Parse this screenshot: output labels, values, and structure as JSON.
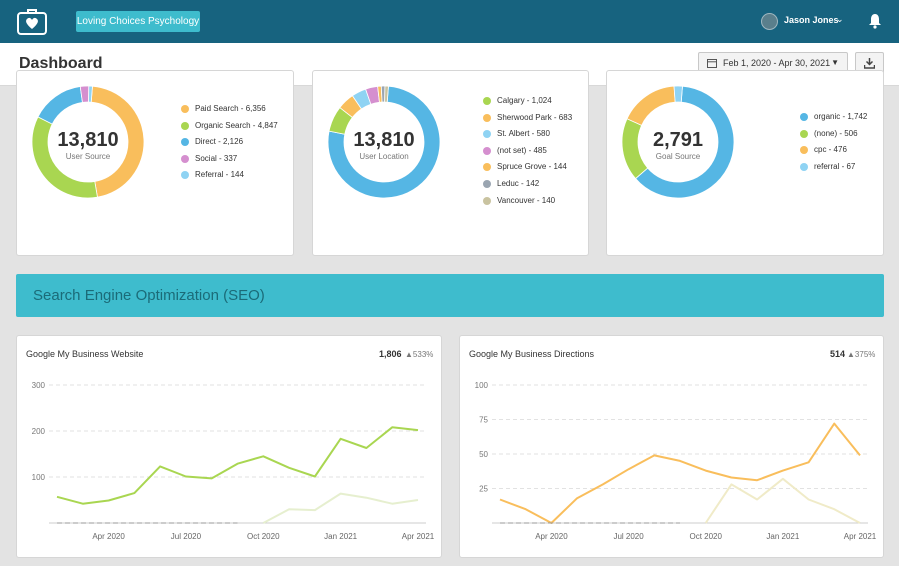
{
  "header": {
    "client_name": "Loving Choices Psychology",
    "user_name": "Jason Jones",
    "page_title": "Dashboard",
    "date_range": "Feb 1, 2020 - Apr 30, 2021"
  },
  "icons": {
    "logo": "medical-kit-heart-icon",
    "avatar": "heart-avatar-icon",
    "user_caret": "chevron-down-icon",
    "bell": "bell-icon",
    "calendar": "calendar-icon",
    "download": "download-icon"
  },
  "colors": {
    "topbar": "#17637f",
    "accent": "#3ebccd",
    "orange": "#f9be5c",
    "green": "#a9d651",
    "blue": "#55b6e4",
    "pink": "#d58fcf",
    "lightblue": "#8fd3f3",
    "gray": "#9aa5b1"
  },
  "donuts": [
    {
      "total": "13,810",
      "label": "User Source",
      "legend": [
        "Paid Search - 6,356",
        "Organic Search - 4,847",
        "Direct - 2,126",
        "Social - 337",
        "Referral - 144"
      ],
      "slices": [
        {
          "value": 6356,
          "color": "#f9be5c"
        },
        {
          "value": 4847,
          "color": "#a9d651"
        },
        {
          "value": 2126,
          "color": "#55b6e4"
        },
        {
          "value": 337,
          "color": "#d58fcf"
        },
        {
          "value": 144,
          "color": "#8fd3f3"
        }
      ]
    },
    {
      "total": "13,810",
      "label": "User Location",
      "legend": [
        "Calgary - 1,024",
        "Sherwood Park - 683",
        "St. Albert - 580",
        "(not set) - 485",
        "Spruce Grove - 144",
        "Leduc - 142",
        "Vancouver - 140"
      ],
      "slices": [
        {
          "value": 10612,
          "color": "#55b6e4"
        },
        {
          "value": 1024,
          "color": "#a9d651"
        },
        {
          "value": 683,
          "color": "#f9be5c"
        },
        {
          "value": 580,
          "color": "#8fd3f3"
        },
        {
          "value": 485,
          "color": "#d58fcf"
        },
        {
          "value": 144,
          "color": "#f9be5c"
        },
        {
          "value": 142,
          "color": "#9aa5b1"
        },
        {
          "value": 140,
          "color": "#c9c3a0"
        }
      ]
    },
    {
      "total": "2,791",
      "label": "Goal Source",
      "legend": [
        "organic - 1,742",
        "(none) - 506",
        "cpc - 476",
        "referral - 67"
      ],
      "slices": [
        {
          "value": 1742,
          "color": "#55b6e4"
        },
        {
          "value": 506,
          "color": "#a9d651"
        },
        {
          "value": 476,
          "color": "#f9be5c"
        },
        {
          "value": 67,
          "color": "#8fd3f3"
        }
      ]
    }
  ],
  "seo": {
    "title": "Search Engine Optimization (SEO)"
  },
  "charts": [
    {
      "title": "Google My Business Website",
      "total": "1,806",
      "delta": "533%",
      "chart_data": {
        "type": "line",
        "ylim": [
          0,
          300
        ],
        "yticks": [
          "300",
          "200",
          "100"
        ],
        "xticks": [
          "Apr 2020",
          "Jul 2020",
          "Oct 2020",
          "Jan 2021",
          "Apr 2021"
        ],
        "x_tick_index": [
          2,
          5,
          8,
          11,
          14
        ],
        "series": [
          {
            "color": "#a9d651",
            "values": [
              57,
              42,
              49,
              65,
              123,
              101,
              97,
              129,
              145,
              120,
              101,
              183,
              163,
              208,
              202
            ]
          },
          {
            "color": "#e6efcf",
            "values": [
              null,
              null,
              null,
              null,
              null,
              null,
              null,
              null,
              0,
              30,
              28,
              64,
              55,
              42,
              50
            ]
          },
          {
            "color": "#9a9a9a",
            "dashed": true,
            "values": [
              0,
              0,
              0,
              0,
              0,
              0,
              0,
              0,
              null,
              null,
              null,
              null,
              null,
              null,
              null
            ]
          }
        ]
      }
    },
    {
      "title": "Google My Business Directions",
      "total": "514",
      "delta": "375%",
      "chart_data": {
        "type": "line",
        "ylim": [
          0,
          100
        ],
        "yticks": [
          "100",
          "75",
          "50",
          "25"
        ],
        "xticks": [
          "Apr 2020",
          "Jul 2020",
          "Oct 2020",
          "Jan 2021",
          "Apr 2021"
        ],
        "x_tick_index": [
          2,
          5,
          8,
          11,
          14
        ],
        "series": [
          {
            "color": "#f9be5c",
            "values": [
              17,
              10,
              0,
              18,
              28,
              39,
              49,
              45,
              38,
              33,
              31,
              38,
              44,
              72,
              49
            ]
          },
          {
            "color": "#f0ebc8",
            "values": [
              null,
              null,
              null,
              null,
              null,
              null,
              null,
              null,
              0,
              28,
              17,
              32,
              17,
              10,
              0
            ]
          },
          {
            "color": "#9a9a9a",
            "dashed": true,
            "values": [
              0,
              0,
              0,
              0,
              0,
              0,
              0,
              0,
              null,
              null,
              null,
              null,
              null,
              null,
              null
            ]
          }
        ]
      }
    }
  ]
}
